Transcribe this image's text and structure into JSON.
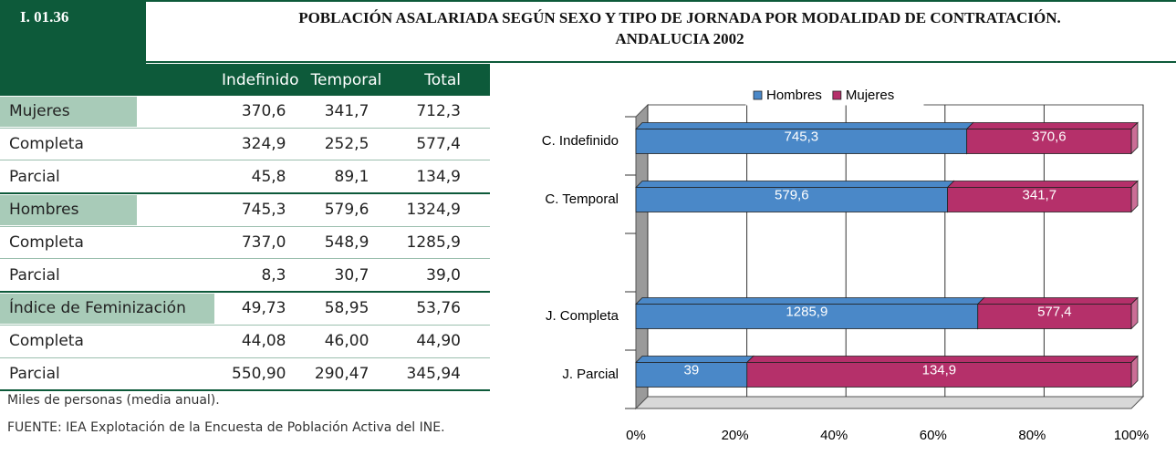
{
  "header": {
    "code": "I. 01.36",
    "title": "POBLACIÓN ASALARIADA SEGÚN SEXO Y TIPO DE JORNADA POR MODALIDAD DE CONTRATACIÓN. ANDALUCIA 2002"
  },
  "table": {
    "columns": [
      "Indefinido",
      "Temporal",
      "Total"
    ],
    "rows": [
      [
        "Mujeres",
        "370,6",
        "341,7",
        "712,3"
      ],
      [
        "Completa",
        "324,9",
        "252,5",
        "577,4"
      ],
      [
        "Parcial",
        "45,8",
        "89,1",
        "134,9"
      ],
      [
        "Hombres",
        "745,3",
        "579,6",
        "1324,9"
      ],
      [
        "Completa",
        "737,0",
        "548,9",
        "1285,9"
      ],
      [
        "Parcial",
        "8,3",
        "30,7",
        "39,0"
      ],
      [
        "Índice de Feminización",
        "49,73",
        "58,95",
        "53,76"
      ],
      [
        "Completa",
        "44,08",
        "46,00",
        "44,90"
      ],
      [
        "Parcial",
        "550,90",
        "290,47",
        "345,94"
      ]
    ]
  },
  "notes": [
    "Miles de personas (media anual).",
    "FUENTE: IEA Explotación de la Encuesta de Población Activa del INE."
  ],
  "chart_data": {
    "type": "bar",
    "orientation": "horizontal",
    "stacking": "percent",
    "categories": [
      "C. Indefinido",
      "C. Temporal",
      null,
      "J. Completa",
      "J. Parcial"
    ],
    "series": [
      {
        "name": "Hombres",
        "color": "#4a88c8",
        "values": [
          745.3,
          579.6,
          null,
          1285.9,
          39
        ],
        "value_labels": [
          "745,3",
          "579,6",
          null,
          "1285,9",
          "39"
        ]
      },
      {
        "name": "Mujeres",
        "color": "#b5306a",
        "values": [
          370.6,
          341.7,
          null,
          577.4,
          134.9
        ],
        "value_labels": [
          "370,6",
          "341,7",
          null,
          "577,4",
          "134,9"
        ]
      }
    ],
    "xlim": [
      0,
      100
    ],
    "xticks": [
      {
        "value": 0,
        "label": "0%"
      },
      {
        "value": 20,
        "label": "20%"
      },
      {
        "value": 40,
        "label": "40%"
      },
      {
        "value": 60,
        "label": "60%"
      },
      {
        "value": 80,
        "label": "80%"
      },
      {
        "value": 100,
        "label": "100%"
      }
    ],
    "grid": true,
    "legend": "top"
  }
}
